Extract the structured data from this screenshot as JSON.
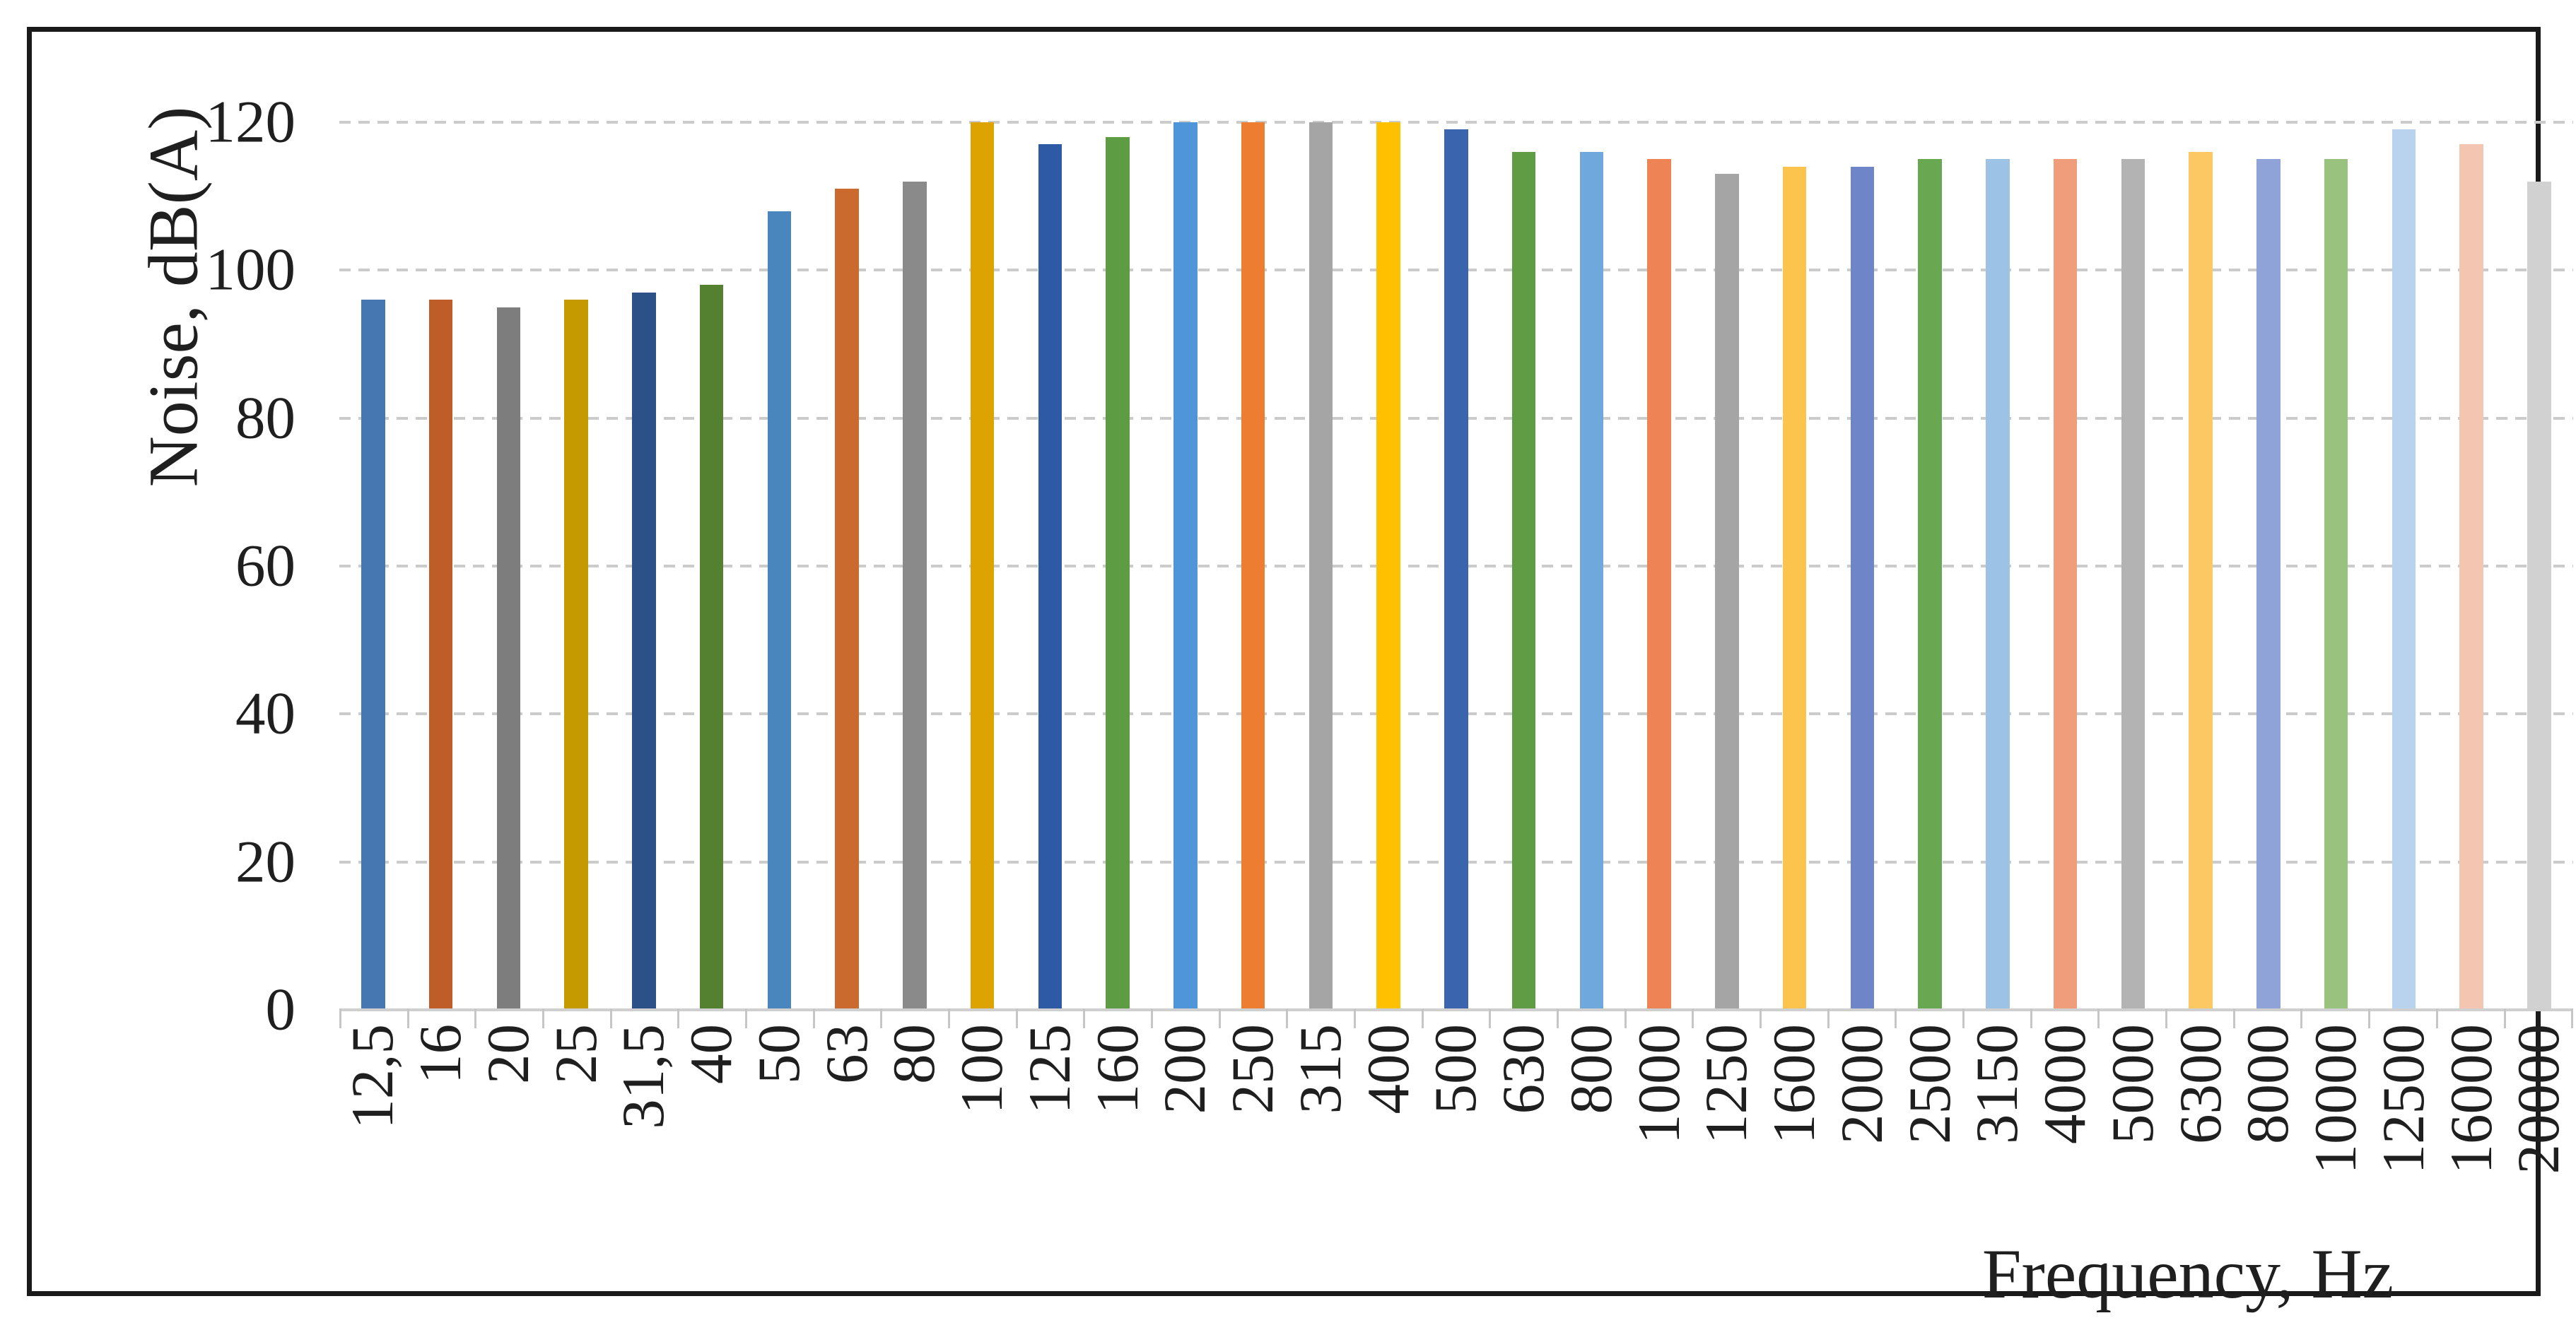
{
  "chart_data": {
    "type": "bar",
    "title": "",
    "xlabel": "Frequency, Hz",
    "ylabel": "Noise, dB(A)",
    "categories": [
      "12,5",
      "16",
      "20",
      "25",
      "31,5",
      "40",
      "50",
      "63",
      "80",
      "100",
      "125",
      "160",
      "200",
      "250",
      "315",
      "400",
      "500",
      "630",
      "800",
      "1000",
      "1250",
      "1600",
      "2000",
      "2500",
      "3150",
      "4000",
      "5000",
      "6300",
      "8000",
      "10000",
      "12500",
      "16000",
      "20000"
    ],
    "values": [
      96,
      96,
      95,
      96,
      97,
      98,
      108,
      111,
      112,
      120,
      117,
      118,
      120,
      120,
      120,
      120,
      119,
      116,
      116,
      115,
      113,
      114,
      114,
      115,
      115,
      115,
      115,
      116,
      115,
      115,
      119,
      117,
      112
    ],
    "bar_colors": [
      "#4777B1",
      "#BF5D29",
      "#7D7D7D",
      "#C59A00",
      "#2C5088",
      "#53812F",
      "#4A86BE",
      "#CA6A2F",
      "#8A8A8A",
      "#DDA300",
      "#2E5AA5",
      "#5E9C43",
      "#4E96D9",
      "#ED7D31",
      "#A5A5A5",
      "#FFC000",
      "#3B64AE",
      "#609C44",
      "#6FA8DC",
      "#EE8455",
      "#A5A5A5",
      "#FCC44D",
      "#6E86C8",
      "#68A850",
      "#9CC3E5",
      "#EF9D7B",
      "#B3B3B3",
      "#FBC863",
      "#8FA3D8",
      "#99C27E",
      "#B9D3EE",
      "#F4C5B1",
      "#D1D1D1"
    ],
    "ylim": [
      0,
      120
    ],
    "yticks": [
      0,
      20,
      40,
      60,
      80,
      100,
      120
    ],
    "grid": "horizontal-dashed",
    "legend_position": "none"
  },
  "colors": {
    "grid": "#CBCBCB",
    "axis": "#C6C6C6",
    "text": "#1f1f1f",
    "frame": "#1a1a1a",
    "background": "#ffffff"
  }
}
